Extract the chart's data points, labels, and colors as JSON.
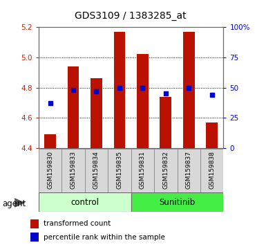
{
  "title": "GDS3109 / 1383285_at",
  "samples": [
    "GSM159830",
    "GSM159833",
    "GSM159834",
    "GSM159835",
    "GSM159831",
    "GSM159832",
    "GSM159837",
    "GSM159838"
  ],
  "bar_values": [
    4.49,
    4.94,
    4.86,
    5.17,
    5.02,
    4.74,
    5.17,
    4.57
  ],
  "bar_baseline": 4.4,
  "percentile_values": [
    37,
    48,
    47,
    50,
    50,
    45,
    50,
    44
  ],
  "bar_color": "#bb1100",
  "dot_color": "#0000cc",
  "ylim_left": [
    4.4,
    5.2
  ],
  "ylim_right": [
    0,
    100
  ],
  "yticks_left": [
    4.4,
    4.6,
    4.8,
    5.0,
    5.2
  ],
  "yticks_right": [
    0,
    25,
    50,
    75,
    100
  ],
  "ytick_labels_right": [
    "0",
    "25",
    "50",
    "75",
    "100%"
  ],
  "groups": [
    {
      "label": "control",
      "indices": [
        0,
        1,
        2,
        3
      ],
      "color": "#ccffcc"
    },
    {
      "label": "Sunitinib",
      "indices": [
        4,
        5,
        6,
        7
      ],
      "color": "#44ee44"
    }
  ],
  "agent_label": "agent",
  "legend_bar_label": "transformed count",
  "legend_dot_label": "percentile rank within the sample",
  "bar_width": 0.5,
  "title_fontsize": 10,
  "tick_fontsize": 7.5,
  "label_fontsize": 6.5
}
